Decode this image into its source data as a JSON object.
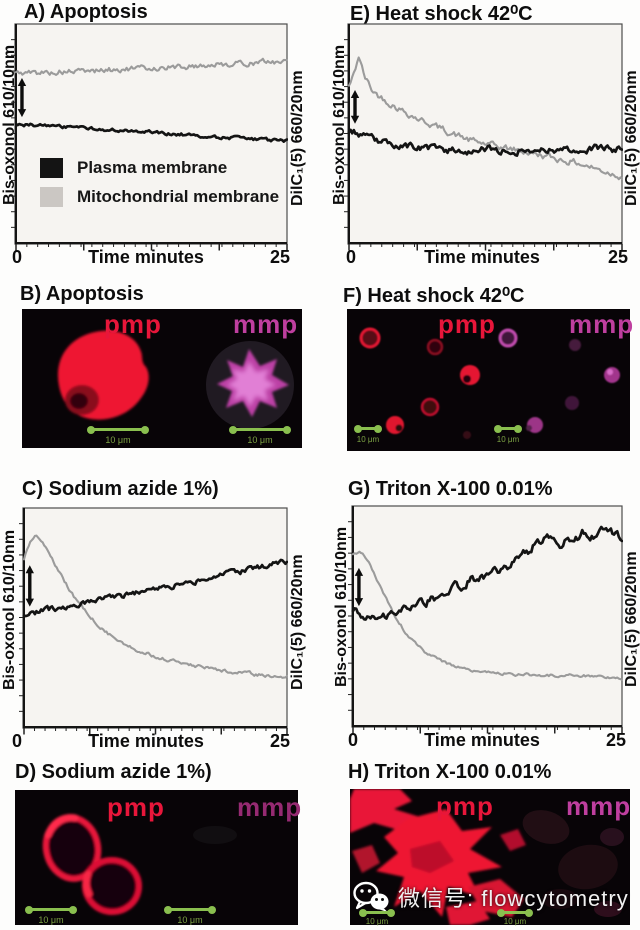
{
  "colors": {
    "red": "#e8163a",
    "red_bright": "#ee1232",
    "magenta": "#bf3f9f",
    "magenta_dark": "#962a72",
    "magenta_light": "#e88ade",
    "green": "#8abf4f",
    "green_label": "#7da344",
    "trace_black": "#141414",
    "trace_gray": "#9b9b9b",
    "legend_gray": "#cbc7c3",
    "plot_bg": "#f6f4f1",
    "image_bg": "#080407",
    "watermark_text": "#f0f0f0"
  },
  "axis": {
    "xlabel": "Time minutes",
    "xtick_min": "0",
    "xtick_max": "25",
    "ylabel_left": "Bis-oxonol 610/10nm",
    "ylabel_right": "DilC₁(5) 660/20nm"
  },
  "legend": {
    "items": [
      {
        "label": "Plasma membrane",
        "color": "#141414"
      },
      {
        "label": "Mitochondrial membrane",
        "color": "#cbc7c3"
      }
    ]
  },
  "panels": {
    "A": {
      "title": "A) Apoptosis"
    },
    "B": {
      "title": "B) Apoptosis"
    },
    "C": {
      "title": "C) Sodium azide 1%)"
    },
    "D": {
      "title": "D) Sodium azide 1%)"
    },
    "E": {
      "title": "E) Heat shock 42⁰C"
    },
    "F": {
      "title": "F) Heat shock 42⁰C"
    },
    "G": {
      "title": "G) Triton X-100 0.01%"
    },
    "H": {
      "title": "H) Triton X-100 0.01%"
    }
  },
  "micro": {
    "pmp": "pmp",
    "mmp": "mmp",
    "scale_label": "10 μm"
  },
  "watermark": {
    "text": "微信号: flowcytometry"
  },
  "chart_data": [
    {
      "id": "A",
      "type": "line",
      "title": "A) Apoptosis",
      "xlabel": "Time minutes",
      "xlim": [
        0,
        25
      ],
      "xticklabels": [
        "0",
        "25"
      ],
      "ylabel_left": "Bis-oxonol 610/10nm",
      "ylabel_right": "DilC₁(5) 660/20nm",
      "ylim": [
        0,
        1
      ],
      "grid": false,
      "legend_position": "lower left",
      "series": [
        {
          "name": "Mitochondrial membrane",
          "color": "gray",
          "noise": 0.012,
          "x": [
            0,
            3,
            6,
            9,
            12,
            15,
            18,
            21,
            24,
            25
          ],
          "y": [
            0.775,
            0.778,
            0.783,
            0.79,
            0.797,
            0.803,
            0.812,
            0.82,
            0.828,
            0.83
          ]
        },
        {
          "name": "Plasma membrane",
          "color": "black",
          "noise": 0.007,
          "x": [
            0,
            2,
            5,
            8,
            11,
            14,
            17,
            20,
            23,
            25
          ],
          "y": [
            0.54,
            0.537,
            0.527,
            0.517,
            0.507,
            0.497,
            0.487,
            0.477,
            0.467,
            0.462
          ]
        }
      ],
      "annotation_arrow": {
        "x": 0.55,
        "y1": 0.575,
        "y2": 0.75,
        "style": "vertical double-headed"
      }
    },
    {
      "id": "E",
      "type": "line",
      "title": "E) Heat shock 42⁰C",
      "xlabel": "Time minutes",
      "xlim": [
        0,
        25
      ],
      "xticklabels": [
        "0",
        "25"
      ],
      "ylabel_left": "Bis-oxonol 610/10nm",
      "ylabel_right": "DilC₁(5) 660/20nm",
      "ylim": [
        0,
        1
      ],
      "grid": false,
      "series": [
        {
          "name": "Mitochondrial membrane",
          "color": "gray",
          "noise": 0.014,
          "x": [
            0,
            0.4,
            0.9,
            1.4,
            2.2,
            3.5,
            5,
            6.5,
            8,
            9.5,
            11,
            13,
            15,
            17,
            19,
            21,
            23,
            25
          ],
          "y": [
            0.715,
            0.76,
            0.855,
            0.76,
            0.69,
            0.645,
            0.6,
            0.562,
            0.53,
            0.497,
            0.468,
            0.443,
            0.425,
            0.405,
            0.382,
            0.362,
            0.33,
            0.302
          ]
        },
        {
          "name": "Plasma membrane",
          "color": "black",
          "noise": 0.015,
          "x": [
            0,
            0.8,
            1.6,
            3,
            5,
            7,
            9,
            11,
            13,
            15,
            17,
            19,
            21,
            23,
            25
          ],
          "y": [
            0.515,
            0.5,
            0.478,
            0.458,
            0.44,
            0.431,
            0.423,
            0.419,
            0.424,
            0.417,
            0.423,
            0.428,
            0.422,
            0.43,
            0.425
          ]
        }
      ],
      "annotation_arrow": {
        "x": 0.55,
        "y1": 0.545,
        "y2": 0.695,
        "style": "vertical double-headed"
      }
    },
    {
      "id": "C",
      "type": "line",
      "title": "C) Sodium azide 1%)",
      "xlabel": "Time minutes",
      "xlim": [
        0,
        25
      ],
      "xticklabels": [
        "0",
        "25"
      ],
      "ylabel_left": "Bis-oxonol 610/10nm",
      "ylabel_right": "DilC₁(5) 660/20nm",
      "ylim": [
        0,
        1
      ],
      "grid": false,
      "series": [
        {
          "name": "Mitochondrial membrane",
          "color": "gray",
          "noise": 0.007,
          "x": [
            0,
            0.5,
            1.1,
            1.8,
            2.6,
            3.4,
            4.2,
            5,
            6,
            7,
            8,
            9,
            10,
            11.5,
            13,
            15,
            17,
            19,
            21,
            23,
            25
          ],
          "y": [
            0.77,
            0.83,
            0.885,
            0.845,
            0.77,
            0.7,
            0.635,
            0.575,
            0.515,
            0.465,
            0.425,
            0.392,
            0.365,
            0.335,
            0.312,
            0.287,
            0.27,
            0.255,
            0.243,
            0.232,
            0.222
          ]
        },
        {
          "name": "Plasma membrane",
          "color": "black",
          "noise": 0.012,
          "x": [
            0,
            2,
            4,
            6,
            8,
            10,
            12,
            14,
            16,
            18,
            20,
            22,
            25
          ],
          "y": [
            0.515,
            0.53,
            0.547,
            0.565,
            0.585,
            0.603,
            0.622,
            0.642,
            0.662,
            0.682,
            0.702,
            0.722,
            0.755
          ]
        }
      ],
      "annotation_arrow": {
        "x": 0.55,
        "y1": 0.55,
        "y2": 0.735,
        "style": "vertical double-headed"
      }
    },
    {
      "id": "G",
      "type": "line",
      "title": "G) Triton X-100 0.01%",
      "xlabel": "Time minutes",
      "xlim": [
        0,
        25
      ],
      "xticklabels": [
        "0",
        "25"
      ],
      "ylabel_left": "Bis-oxonol 610/10nm",
      "ylabel_right": "DilC₁(5) 660/20nm",
      "ylim": [
        0,
        1
      ],
      "grid": false,
      "series": [
        {
          "name": "Mitochondrial membrane",
          "color": "gray",
          "noise": 0.006,
          "x": [
            0,
            0.8,
            1.6,
            2.4,
            3.2,
            4,
            5,
            6,
            7,
            8,
            9.5,
            11,
            13,
            15,
            17,
            19,
            21,
            23,
            25
          ],
          "y": [
            0.775,
            0.788,
            0.73,
            0.645,
            0.565,
            0.49,
            0.415,
            0.36,
            0.322,
            0.295,
            0.268,
            0.25,
            0.238,
            0.232,
            0.228,
            0.227,
            0.226,
            0.222,
            0.215
          ]
        },
        {
          "name": "Plasma membrane",
          "color": "black",
          "noise": 0.02,
          "x": [
            0,
            0.7,
            1.5,
            2.5,
            3.5,
            5,
            6.5,
            8,
            9.5,
            11,
            12.5,
            14,
            15.5,
            16.5,
            17.5,
            18.5,
            19.5,
            20.5,
            21.5,
            22.5,
            23.5,
            24.5,
            25
          ],
          "y": [
            0.53,
            0.483,
            0.475,
            0.49,
            0.505,
            0.53,
            0.557,
            0.585,
            0.625,
            0.66,
            0.687,
            0.713,
            0.765,
            0.8,
            0.855,
            0.838,
            0.825,
            0.858,
            0.88,
            0.865,
            0.888,
            0.858,
            0.868
          ]
        }
      ],
      "annotation_arrow": {
        "x": 0.55,
        "y1": 0.545,
        "y2": 0.715,
        "style": "vertical double-headed"
      }
    }
  ]
}
